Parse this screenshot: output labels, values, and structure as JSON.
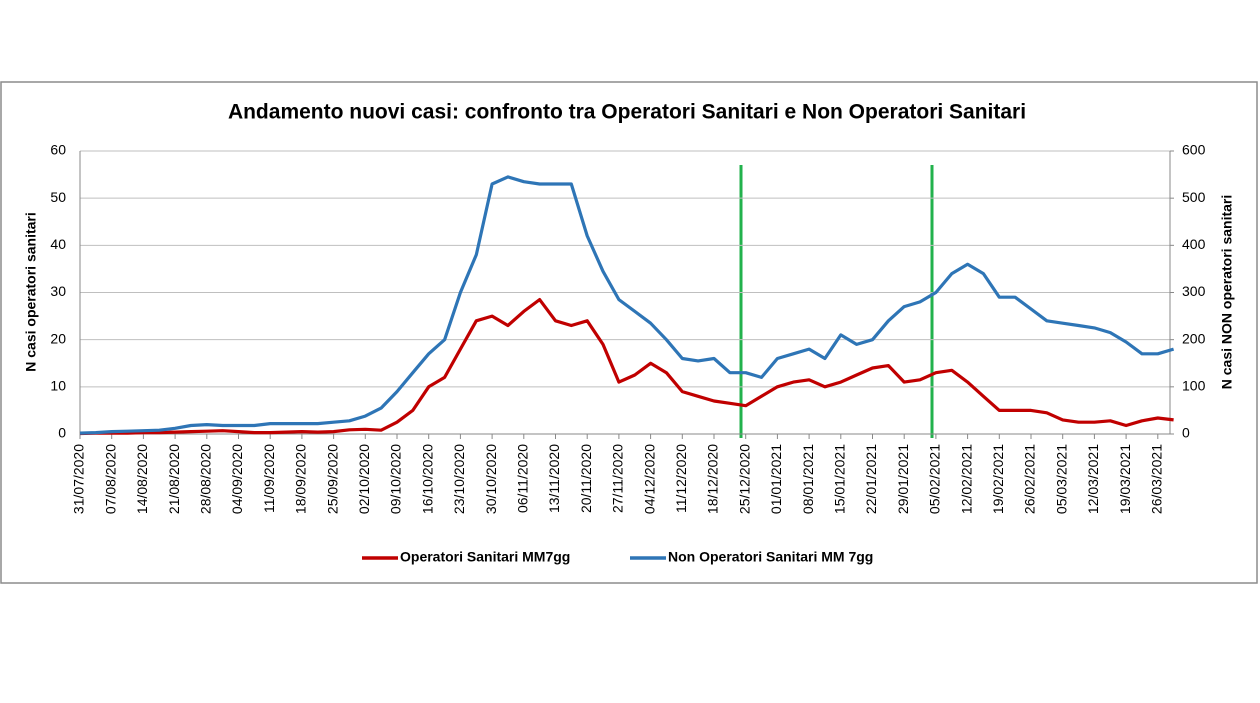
{
  "chart_data": {
    "type": "line",
    "title": "Andamento nuovi casi: confronto tra Operatori Sanitari e Non Operatori Sanitari",
    "y_label": "N casi operatori sanitari",
    "y2_label": "N casi NON operatori sanitari",
    "categories": [
      "31/07/2020",
      null,
      "07/08/2020",
      null,
      "14/08/2020",
      null,
      "21/08/2020",
      null,
      "28/08/2020",
      null,
      "04/09/2020",
      null,
      "11/09/2020",
      null,
      "18/09/2020",
      null,
      "25/09/2020",
      null,
      "02/10/2020",
      null,
      "09/10/2020",
      null,
      "16/10/2020",
      null,
      "23/10/2020",
      null,
      "30/10/2020",
      null,
      "06/11/2020",
      null,
      "13/11/2020",
      null,
      "20/11/2020",
      null,
      "27/11/2020",
      null,
      "04/12/2020",
      null,
      "11/12/2020",
      null,
      "18/12/2020",
      null,
      "25/12/2020",
      null,
      "01/01/2021",
      null,
      "08/01/2021",
      null,
      "15/01/2021",
      null,
      "22/01/2021",
      null,
      "29/01/2021",
      null,
      "05/02/2021",
      null,
      "12/02/2021",
      null,
      "19/02/2021",
      null,
      "26/02/2021",
      null,
      "05/03/2021",
      null,
      "12/03/2021",
      null,
      "19/03/2021",
      null,
      "26/03/2021",
      null
    ],
    "series": [
      {
        "name": "Operatori Sanitari MM7gg",
        "color": "#c00000",
        "axis": "y",
        "values": [
          0.1,
          0.2,
          0.2,
          0.2,
          0.3,
          0.3,
          0.4,
          0.5,
          0.6,
          0.7,
          0.5,
          0.3,
          0.3,
          0.4,
          0.5,
          0.4,
          0.5,
          0.9,
          1,
          0.8,
          2.5,
          5,
          10,
          12,
          18,
          24,
          25,
          23,
          26,
          28.5,
          24,
          23,
          24,
          19,
          11,
          12.5,
          15,
          13,
          9,
          8,
          7,
          6.5,
          6,
          8,
          10,
          11,
          11.5,
          10,
          11,
          12.5,
          14,
          14.5,
          11,
          11.5,
          13,
          13.5,
          11,
          8,
          5,
          5,
          5,
          4.5,
          3,
          2.5,
          2.5,
          2.8,
          1.8,
          2.8,
          3.4,
          3.0
        ]
      },
      {
        "name": "Non Operatori Sanitari MM 7gg",
        "color": "#2e75b6",
        "axis": "y2",
        "values": [
          2,
          3,
          5,
          6,
          7,
          8,
          12,
          18,
          20,
          18,
          18,
          18,
          22,
          22,
          22,
          22,
          25,
          28,
          38,
          55,
          90,
          130,
          170,
          200,
          300,
          380,
          530,
          545,
          535,
          530,
          530,
          530,
          420,
          345,
          285,
          260,
          235,
          200,
          160,
          155,
          160,
          130,
          130,
          120,
          160,
          170,
          180,
          160,
          210,
          190,
          200,
          240,
          270,
          280,
          300,
          340,
          360,
          340,
          290,
          290,
          265,
          240,
          235,
          230,
          225,
          215,
          195,
          170,
          170,
          180
        ]
      }
    ],
    "ylim": [
      0,
      60
    ],
    "yticks": [
      0,
      10,
      20,
      30,
      40,
      50,
      60
    ],
    "y2lim": [
      0,
      600
    ],
    "y2ticks": [
      0,
      100,
      200,
      300,
      400,
      500,
      600
    ],
    "grid": true,
    "legend": "bottom"
  }
}
